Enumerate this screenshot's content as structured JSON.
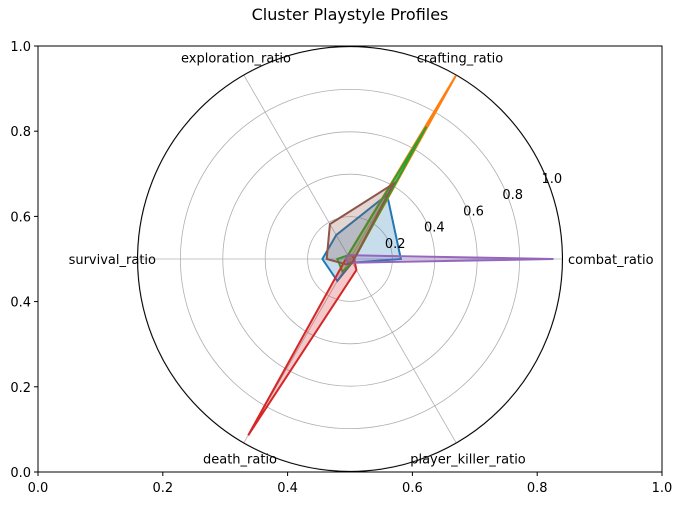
{
  "chart_data": {
    "type": "radar",
    "title": "Cluster Playstyle Profiles",
    "axes": [
      "combat_ratio",
      "crafting_ratio",
      "exploration_ratio",
      "survival_ratio",
      "death_ratio",
      "player_killer_ratio"
    ],
    "r_ticks": [
      "0.2",
      "0.4",
      "0.6",
      "0.8",
      "1.0"
    ],
    "r_range": [
      0,
      1.0
    ],
    "series": [
      {
        "color": "#1f77b4",
        "values": [
          0.24,
          0.35,
          0.13,
          0.13,
          0.12,
          0.02
        ]
      },
      {
        "color": "#ff7f0e",
        "values": [
          0.02,
          1.0,
          0.02,
          0.02,
          0.02,
          0.02
        ]
      },
      {
        "color": "#2ca02c",
        "values": [
          0.02,
          0.72,
          0.02,
          0.06,
          0.07,
          0.02
        ]
      },
      {
        "color": "#d62728",
        "values": [
          0.02,
          0.02,
          0.02,
          0.02,
          0.96,
          0.06
        ]
      },
      {
        "color": "#9467bd",
        "values": [
          0.96,
          0.02,
          0.02,
          0.02,
          0.02,
          0.02
        ]
      },
      {
        "color": "#8c564b",
        "values": [
          0.02,
          0.41,
          0.19,
          0.11,
          0.03,
          0.02
        ]
      }
    ],
    "frame_x_ticks": [
      "0.0",
      "0.2",
      "0.4",
      "0.6",
      "0.8",
      "1.0"
    ],
    "frame_y_ticks": [
      "0.0",
      "0.2",
      "0.4",
      "0.6",
      "0.8",
      "1.0"
    ],
    "grid": true
  }
}
